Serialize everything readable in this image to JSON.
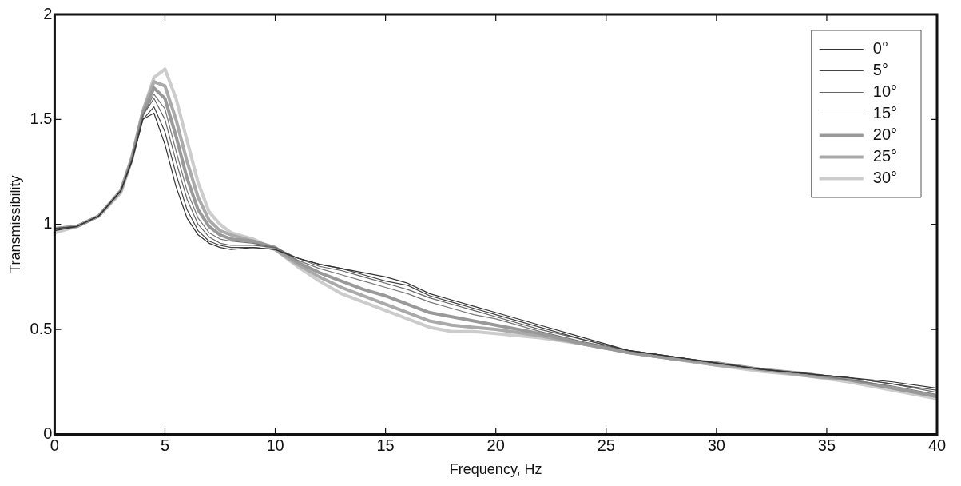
{
  "chart_data": {
    "type": "line",
    "xlabel": "Frequency, Hz",
    "ylabel": "Transmissibility",
    "x": [
      0,
      1,
      2,
      3,
      3.5,
      4,
      4.5,
      5,
      5.5,
      6,
      6.5,
      7,
      7.5,
      8,
      9,
      10,
      11,
      12,
      13,
      14,
      15,
      16,
      17,
      18,
      19,
      20,
      22,
      24,
      26,
      28,
      30,
      32,
      34,
      36,
      38,
      40
    ],
    "series": [
      {
        "name": "0°",
        "color": "#333333",
        "values": [
          0.97,
          0.99,
          1.04,
          1.16,
          1.3,
          1.5,
          1.53,
          1.38,
          1.18,
          1.03,
          0.95,
          0.91,
          0.89,
          0.88,
          0.89,
          0.88,
          0.84,
          0.81,
          0.79,
          0.77,
          0.75,
          0.72,
          0.67,
          0.64,
          0.61,
          0.58,
          0.52,
          0.46,
          0.4,
          0.37,
          0.34,
          0.31,
          0.29,
          0.27,
          0.25,
          0.22
        ]
      },
      {
        "name": "5°",
        "color": "#444444",
        "values": [
          0.98,
          0.99,
          1.04,
          1.16,
          1.3,
          1.5,
          1.56,
          1.44,
          1.24,
          1.07,
          0.97,
          0.92,
          0.9,
          0.89,
          0.89,
          0.88,
          0.84,
          0.81,
          0.79,
          0.76,
          0.73,
          0.71,
          0.66,
          0.63,
          0.6,
          0.57,
          0.51,
          0.45,
          0.4,
          0.37,
          0.34,
          0.31,
          0.29,
          0.27,
          0.24,
          0.21
        ]
      },
      {
        "name": "10°",
        "color": "#666666",
        "values": [
          0.98,
          0.99,
          1.04,
          1.16,
          1.31,
          1.52,
          1.6,
          1.5,
          1.3,
          1.12,
          1.0,
          0.94,
          0.91,
          0.9,
          0.9,
          0.89,
          0.84,
          0.8,
          0.78,
          0.75,
          0.72,
          0.69,
          0.65,
          0.62,
          0.59,
          0.56,
          0.5,
          0.45,
          0.4,
          0.37,
          0.34,
          0.31,
          0.29,
          0.27,
          0.24,
          0.2
        ]
      },
      {
        "name": "15°",
        "color": "#777777",
        "values": [
          0.98,
          0.99,
          1.04,
          1.16,
          1.31,
          1.52,
          1.62,
          1.55,
          1.35,
          1.16,
          1.03,
          0.96,
          0.93,
          0.92,
          0.91,
          0.89,
          0.83,
          0.79,
          0.76,
          0.73,
          0.7,
          0.67,
          0.63,
          0.6,
          0.57,
          0.55,
          0.49,
          0.44,
          0.4,
          0.37,
          0.34,
          0.31,
          0.29,
          0.26,
          0.23,
          0.19
        ]
      },
      {
        "name": "20°",
        "color": "#999999",
        "values": [
          0.98,
          0.99,
          1.04,
          1.16,
          1.31,
          1.53,
          1.65,
          1.6,
          1.42,
          1.22,
          1.07,
          0.99,
          0.95,
          0.93,
          0.92,
          0.89,
          0.82,
          0.77,
          0.73,
          0.69,
          0.66,
          0.62,
          0.58,
          0.56,
          0.54,
          0.52,
          0.48,
          0.43,
          0.39,
          0.36,
          0.34,
          0.31,
          0.29,
          0.26,
          0.22,
          0.18
        ]
      },
      {
        "name": "25°",
        "color": "#aaaaaa",
        "values": [
          0.98,
          0.99,
          1.04,
          1.16,
          1.32,
          1.54,
          1.68,
          1.66,
          1.5,
          1.3,
          1.13,
          1.02,
          0.97,
          0.95,
          0.92,
          0.88,
          0.81,
          0.75,
          0.7,
          0.66,
          0.62,
          0.58,
          0.54,
          0.52,
          0.51,
          0.5,
          0.47,
          0.43,
          0.39,
          0.36,
          0.33,
          0.31,
          0.28,
          0.26,
          0.22,
          0.18
        ]
      },
      {
        "name": "30°",
        "color": "#cccccc",
        "values": [
          0.96,
          0.99,
          1.04,
          1.15,
          1.31,
          1.54,
          1.7,
          1.74,
          1.6,
          1.4,
          1.2,
          1.06,
          1.0,
          0.96,
          0.93,
          0.88,
          0.8,
          0.73,
          0.67,
          0.63,
          0.59,
          0.55,
          0.51,
          0.49,
          0.49,
          0.48,
          0.46,
          0.43,
          0.39,
          0.36,
          0.33,
          0.3,
          0.28,
          0.25,
          0.21,
          0.17
        ]
      }
    ],
    "xlim": [
      0,
      40
    ],
    "xticks": [
      0,
      5,
      10,
      15,
      20,
      25,
      30,
      35,
      40
    ],
    "ylim": [
      0,
      2
    ],
    "yticks": [
      0,
      0.5,
      1,
      1.5,
      2
    ],
    "grid": false,
    "legend": "top right",
    "marker": "none",
    "line_style": "solid"
  }
}
